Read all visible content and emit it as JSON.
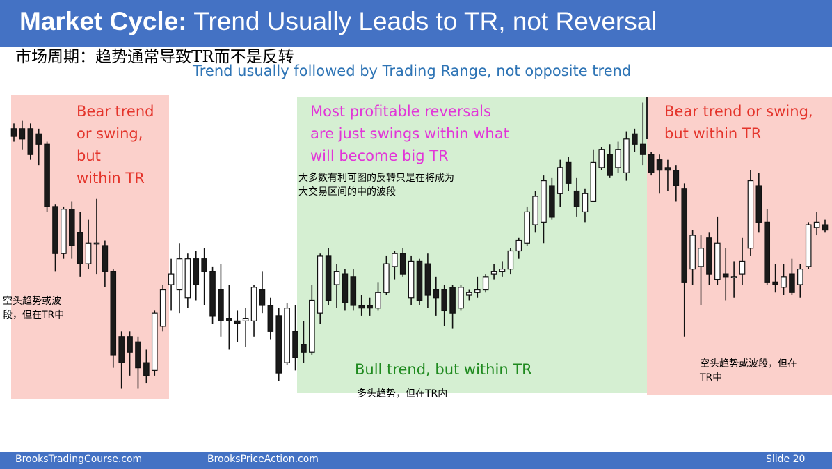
{
  "header": {
    "title_bold": "Market Cycle:",
    "title_rest": " Trend Usually Leads to TR, not Reversal",
    "subtitle_cn": "市场周期：趋势通常导致TR而不是反转",
    "subtitle_en": "Trend usually followed by Trading Range, not opposite trend"
  },
  "annotations": {
    "bear_left": "Bear trend\nor swing,\nbut\nwithin TR",
    "reversals": "Most profitable reversals\nare just swings within what\nwill become big TR",
    "bear_right": "Bear trend or swing,\nbut within TR",
    "bull": "Bull trend, but within TR",
    "cn_left": "空头趋势或波\n段，但在TR中",
    "cn_reversals": "大多数有利可图的反转只是在将成为\n大交易区间的中的波段",
    "cn_bull": "多头趋势，但在TR内",
    "cn_right": "空头趋势或波段，但在\nTR中"
  },
  "footer": {
    "left": "BrooksTradingCourse.com",
    "center": "BrooksPriceAction.com",
    "slide": "Slide  20"
  },
  "colors": {
    "header_blue": "#4472c4",
    "bear_region": "#fbd0cb",
    "bull_region": "#d5efd2",
    "bear_candle": "#1a1a1a",
    "bull_candle": "#ffffff",
    "red_text": "#e4342b",
    "magenta_text": "#e235d8",
    "green_text": "#1f8a1f",
    "subtitle_blue": "#2e74b5"
  },
  "chart_data": {
    "type": "candlestick",
    "axes": "none",
    "candles": [
      {
        "o": 140,
        "h": 142,
        "l": 135,
        "c": 137
      },
      {
        "o": 140,
        "h": 143,
        "l": 132,
        "c": 136
      },
      {
        "o": 140,
        "h": 142,
        "l": 128,
        "c": 130
      },
      {
        "o": 138,
        "h": 140,
        "l": 126,
        "c": 134
      },
      {
        "o": 134,
        "h": 135,
        "l": 108,
        "c": 110
      },
      {
        "o": 110,
        "h": 111,
        "l": 85,
        "c": 92
      },
      {
        "o": 92,
        "h": 110,
        "l": 90,
        "c": 109
      },
      {
        "o": 109,
        "h": 112,
        "l": 90,
        "c": 95
      },
      {
        "o": 100,
        "h": 108,
        "l": 83,
        "c": 88
      },
      {
        "o": 88,
        "h": 105,
        "l": 86,
        "c": 96
      },
      {
        "o": 96,
        "h": 113,
        "l": 84,
        "c": 96
      },
      {
        "o": 95,
        "h": 97,
        "l": 79,
        "c": 85
      },
      {
        "o": 85,
        "h": 86,
        "l": 48,
        "c": 53
      },
      {
        "o": 60,
        "h": 62,
        "l": 40,
        "c": 50
      },
      {
        "o": 60,
        "h": 62,
        "l": 45,
        "c": 54
      },
      {
        "o": 58,
        "h": 60,
        "l": 40,
        "c": 48
      },
      {
        "o": 50,
        "h": 55,
        "l": 42,
        "c": 45
      },
      {
        "o": 47,
        "h": 70,
        "l": 45,
        "c": 69
      },
      {
        "o": 64,
        "h": 80,
        "l": 62,
        "c": 78
      },
      {
        "o": 80,
        "h": 90,
        "l": 70,
        "c": 84
      },
      {
        "o": 78,
        "h": 96,
        "l": 69,
        "c": 90
      },
      {
        "o": 75,
        "h": 92,
        "l": 71,
        "c": 90
      },
      {
        "o": 90,
        "h": 93,
        "l": 74,
        "c": 80
      },
      {
        "o": 90,
        "h": 94,
        "l": 72,
        "c": 85
      },
      {
        "o": 85,
        "h": 87,
        "l": 65,
        "c": 68
      },
      {
        "o": 78,
        "h": 88,
        "l": 60,
        "c": 66
      },
      {
        "o": 67,
        "h": 80,
        "l": 55,
        "c": 66
      },
      {
        "o": 66,
        "h": 70,
        "l": 58,
        "c": 65
      },
      {
        "o": 66,
        "h": 71,
        "l": 56,
        "c": 67
      },
      {
        "o": 66,
        "h": 80,
        "l": 60,
        "c": 79
      },
      {
        "o": 78,
        "h": 85,
        "l": 69,
        "c": 72
      },
      {
        "o": 72,
        "h": 75,
        "l": 59,
        "c": 62
      },
      {
        "o": 68,
        "h": 71,
        "l": 43,
        "c": 46
      },
      {
        "o": 50,
        "h": 73,
        "l": 49,
        "c": 71
      },
      {
        "o": 62,
        "h": 72,
        "l": 47,
        "c": 52
      },
      {
        "o": 57,
        "h": 66,
        "l": 50,
        "c": 54
      },
      {
        "o": 54,
        "h": 80,
        "l": 53,
        "c": 74
      },
      {
        "o": 69,
        "h": 92,
        "l": 65,
        "c": 91
      },
      {
        "o": 91,
        "h": 94,
        "l": 72,
        "c": 74
      },
      {
        "o": 80,
        "h": 88,
        "l": 71,
        "c": 85
      },
      {
        "o": 84,
        "h": 86,
        "l": 70,
        "c": 73
      },
      {
        "o": 83,
        "h": 86,
        "l": 70,
        "c": 72
      },
      {
        "o": 72,
        "h": 76,
        "l": 68,
        "c": 71
      },
      {
        "o": 72,
        "h": 75,
        "l": 68,
        "c": 71
      },
      {
        "o": 71,
        "h": 81,
        "l": 70,
        "c": 77
      },
      {
        "o": 77,
        "h": 91,
        "l": 76,
        "c": 88
      },
      {
        "o": 87,
        "h": 93,
        "l": 82,
        "c": 92
      },
      {
        "o": 92,
        "h": 94,
        "l": 83,
        "c": 84
      },
      {
        "o": 75,
        "h": 91,
        "l": 72,
        "c": 89
      },
      {
        "o": 89,
        "h": 90,
        "l": 72,
        "c": 74
      },
      {
        "o": 88,
        "h": 92,
        "l": 71,
        "c": 76
      },
      {
        "o": 78,
        "h": 83,
        "l": 68,
        "c": 75
      },
      {
        "o": 78,
        "h": 80,
        "l": 64,
        "c": 70
      },
      {
        "o": 79,
        "h": 80,
        "l": 63,
        "c": 69
      },
      {
        "o": 71,
        "h": 80,
        "l": 70,
        "c": 79
      },
      {
        "o": 76,
        "h": 78,
        "l": 74,
        "c": 77
      },
      {
        "o": 77,
        "h": 83,
        "l": 75,
        "c": 78
      },
      {
        "o": 78,
        "h": 84,
        "l": 77,
        "c": 83
      },
      {
        "o": 84,
        "h": 88,
        "l": 82,
        "c": 85
      },
      {
        "o": 85,
        "h": 89,
        "l": 83,
        "c": 86
      },
      {
        "o": 86,
        "h": 94,
        "l": 84,
        "c": 93
      },
      {
        "o": 93,
        "h": 98,
        "l": 90,
        "c": 97
      },
      {
        "o": 96,
        "h": 110,
        "l": 95,
        "c": 108
      },
      {
        "o": 103,
        "h": 116,
        "l": 100,
        "c": 114
      },
      {
        "o": 104,
        "h": 122,
        "l": 96,
        "c": 120
      },
      {
        "o": 118,
        "h": 121,
        "l": 105,
        "c": 106
      },
      {
        "o": 115,
        "h": 128,
        "l": 110,
        "c": 125
      },
      {
        "o": 127,
        "h": 129,
        "l": 116,
        "c": 119
      },
      {
        "o": 116,
        "h": 121,
        "l": 106,
        "c": 110
      },
      {
        "o": 108,
        "h": 117,
        "l": 104,
        "c": 115
      },
      {
        "o": 112,
        "h": 132,
        "l": 112,
        "c": 127
      },
      {
        "o": 125,
        "h": 133,
        "l": 124,
        "c": 132
      },
      {
        "o": 130,
        "h": 134,
        "l": 121,
        "c": 122
      },
      {
        "o": 125,
        "h": 135,
        "l": 123,
        "c": 132
      },
      {
        "o": 123,
        "h": 139,
        "l": 120,
        "c": 136
      },
      {
        "o": 138,
        "h": 140,
        "l": 131,
        "c": 134
      },
      {
        "o": 134,
        "h": 150,
        "l": 126,
        "c": 130
      },
      {
        "o": 130,
        "h": 131,
        "l": 122,
        "c": 123
      },
      {
        "o": 128,
        "h": 130,
        "l": 115,
        "c": 124
      },
      {
        "o": 125,
        "h": 128,
        "l": 116,
        "c": 124
      },
      {
        "o": 124,
        "h": 126,
        "l": 112,
        "c": 118
      },
      {
        "o": 117,
        "h": 119,
        "l": 60,
        "c": 81
      },
      {
        "o": 86,
        "h": 101,
        "l": 80,
        "c": 99
      },
      {
        "o": 87,
        "h": 99,
        "l": 72,
        "c": 94
      },
      {
        "o": 98,
        "h": 100,
        "l": 80,
        "c": 84
      },
      {
        "o": 82,
        "h": 106,
        "l": 80,
        "c": 96
      },
      {
        "o": 84,
        "h": 94,
        "l": 74,
        "c": 83
      },
      {
        "o": 83,
        "h": 89,
        "l": 75,
        "c": 83
      },
      {
        "o": 84,
        "h": 98,
        "l": 80,
        "c": 89
      },
      {
        "o": 94,
        "h": 124,
        "l": 91,
        "c": 120
      },
      {
        "o": 118,
        "h": 123,
        "l": 100,
        "c": 104
      },
      {
        "o": 104,
        "h": 109,
        "l": 80,
        "c": 81
      },
      {
        "o": 81,
        "h": 88,
        "l": 77,
        "c": 80
      },
      {
        "o": 79,
        "h": 88,
        "l": 76,
        "c": 83
      },
      {
        "o": 84,
        "h": 90,
        "l": 76,
        "c": 77
      },
      {
        "o": 80,
        "h": 88,
        "l": 75,
        "c": 86
      },
      {
        "o": 87,
        "h": 104,
        "l": 86,
        "c": 103
      },
      {
        "o": 102,
        "h": 108,
        "l": 99,
        "c": 104
      },
      {
        "o": 103,
        "h": 105,
        "l": 100,
        "c": 101
      }
    ]
  }
}
